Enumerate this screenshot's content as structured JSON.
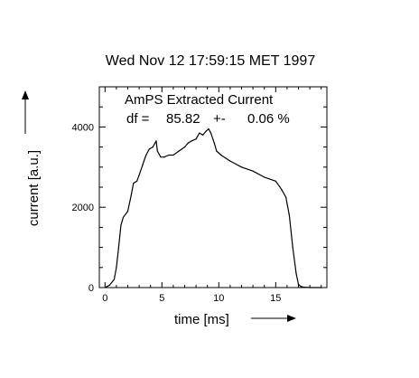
{
  "chart_data": {
    "type": "line",
    "title": "Wed Nov 12 17:59:15 MET 1997",
    "plot_label": "AmPS Extracted Current",
    "df_label": "df =",
    "df_value": "85.82",
    "df_pm": "+-",
    "df_error": "0.06 %",
    "xlabel": "time [ms]",
    "ylabel": "current [a.u.]",
    "xlim": [
      -0.5,
      19.5
    ],
    "ylim": [
      0,
      5000
    ],
    "xticks": [
      0,
      5,
      10,
      15
    ],
    "xtick_labels": [
      "0",
      "5",
      "10",
      "15"
    ],
    "yticks": [
      0,
      2000,
      4000
    ],
    "ytick_labels": [
      "0",
      "2000",
      "4000"
    ],
    "grid": false,
    "legend": "none",
    "line_color": "#000000",
    "series": [
      {
        "x": [
          0,
          0.4,
          0.8,
          1.0,
          1.2,
          1.4,
          1.6,
          2.0,
          2.3,
          2.5,
          2.8,
          3.0,
          3.3,
          3.6,
          3.9,
          4.2,
          4.5,
          4.6,
          4.9,
          5.2,
          5.6,
          6.0,
          6.5,
          7.0,
          7.3,
          7.6,
          8.0,
          8.3,
          8.6,
          8.9,
          9.1,
          9.3,
          9.6,
          9.8,
          10.2,
          11.0,
          12.0,
          13.0,
          14.0,
          15.0,
          15.5,
          15.9,
          16.2,
          16.5,
          16.8,
          17.0,
          17.2,
          17.5,
          18.0,
          19.0
        ],
        "y": [
          0,
          60,
          200,
          500,
          1000,
          1550,
          1750,
          1900,
          2300,
          2600,
          2650,
          2800,
          3050,
          3300,
          3450,
          3500,
          3650,
          3400,
          3250,
          3250,
          3300,
          3300,
          3400,
          3500,
          3600,
          3650,
          3700,
          3850,
          3800,
          3900,
          3950,
          3850,
          3600,
          3400,
          3300,
          3150,
          3000,
          2900,
          2750,
          2650,
          2450,
          2250,
          1800,
          1000,
          350,
          80,
          30,
          10,
          0,
          0
        ]
      }
    ]
  }
}
